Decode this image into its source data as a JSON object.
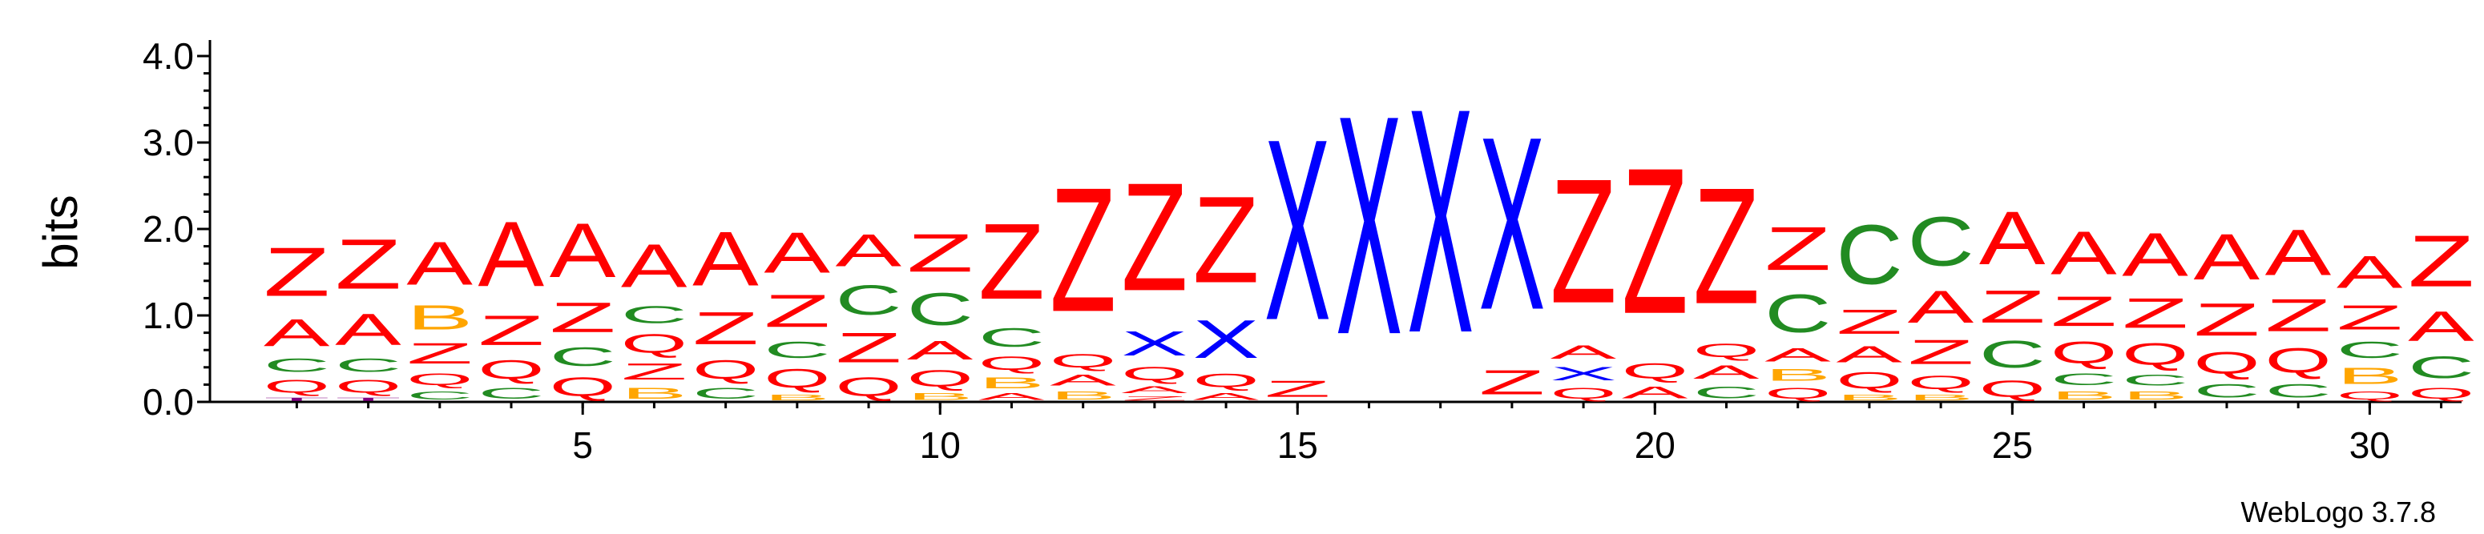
{
  "chart_data": {
    "type": "sequence_logo",
    "ylabel": "bits",
    "ylim": [
      0,
      4.2
    ],
    "yticks": [
      "0.0",
      "1.0",
      "2.0",
      "3.0",
      "4.0"
    ],
    "xtick_values": [
      5,
      10,
      15,
      20,
      25,
      30
    ],
    "xtick_labels": [
      "5",
      "10",
      "15",
      "20",
      "25",
      "30"
    ],
    "credit": "WebLogo 3.7.8",
    "colors": {
      "A": "#ff0000",
      "Z": "#ff0000",
      "Q": "#ff0000",
      "C": "#228b22",
      "B": "#ffa500",
      "X": "#0000ff",
      "T": "#800080"
    },
    "columns": [
      {
        "position": 1,
        "stack": [
          [
            "T",
            0.06
          ],
          [
            "Q",
            0.24
          ],
          [
            "C",
            0.25
          ],
          [
            "A",
            0.5
          ],
          [
            "Z",
            0.9
          ]
        ]
      },
      {
        "position": 2,
        "stack": [
          [
            "T",
            0.06
          ],
          [
            "Q",
            0.24
          ],
          [
            "C",
            0.25
          ],
          [
            "A",
            0.58
          ],
          [
            "Z",
            0.92
          ]
        ]
      },
      {
        "position": 3,
        "stack": [
          [
            "C",
            0.15
          ],
          [
            "Q",
            0.22
          ],
          [
            "Z",
            0.38
          ],
          [
            "B",
            0.45
          ],
          [
            "A",
            0.8
          ]
        ]
      },
      {
        "position": 4,
        "stack": [
          [
            "C",
            0.2
          ],
          [
            "Q",
            0.35
          ],
          [
            "Z",
            0.55
          ],
          [
            "A",
            1.2
          ]
        ]
      },
      {
        "position": 5,
        "stack": [
          [
            "Q",
            0.35
          ],
          [
            "C",
            0.35
          ],
          [
            "Z",
            0.55
          ],
          [
            "A",
            1.0
          ]
        ]
      },
      {
        "position": 6,
        "stack": [
          [
            "B",
            0.2
          ],
          [
            "Z",
            0.3
          ],
          [
            "Q",
            0.35
          ],
          [
            "C",
            0.32
          ],
          [
            "A",
            0.8
          ]
        ]
      },
      {
        "position": 7,
        "stack": [
          [
            "C",
            0.2
          ],
          [
            "Q",
            0.35
          ],
          [
            "Z",
            0.6
          ],
          [
            "A",
            1.0
          ]
        ]
      },
      {
        "position": 8,
        "stack": [
          [
            "B",
            0.1
          ],
          [
            "Q",
            0.35
          ],
          [
            "C",
            0.3
          ],
          [
            "Z",
            0.6
          ],
          [
            "A",
            0.75
          ]
        ]
      },
      {
        "position": 9,
        "stack": [
          [
            "Q",
            0.35
          ],
          [
            "Z",
            0.55
          ],
          [
            "C",
            0.55
          ],
          [
            "A",
            0.6
          ]
        ]
      },
      {
        "position": 10,
        "stack": [
          [
            "B",
            0.12
          ],
          [
            "Q",
            0.3
          ],
          [
            "A",
            0.35
          ],
          [
            "C",
            0.6
          ],
          [
            "Z",
            0.7
          ]
        ]
      },
      {
        "position": 11,
        "stack": [
          [
            "A",
            0.12
          ],
          [
            "B",
            0.2
          ],
          [
            "Q",
            0.25
          ],
          [
            "C",
            0.35
          ],
          [
            "Z",
            1.4
          ]
        ]
      },
      {
        "position": 12,
        "stack": [
          [
            "B",
            0.15
          ],
          [
            "A",
            0.2
          ],
          [
            "Q",
            0.25
          ],
          [
            "Z",
            2.3
          ]
        ]
      },
      {
        "position": 13,
        "stack": [
          [
            "Z",
            0.08
          ],
          [
            "A",
            0.12
          ],
          [
            "Q",
            0.25
          ],
          [
            "X",
            0.45
          ],
          [
            "Z",
            2.0
          ]
        ]
      },
      {
        "position": 14,
        "stack": [
          [
            "A",
            0.12
          ],
          [
            "Q",
            0.25
          ],
          [
            "X",
            0.7
          ],
          [
            "Z",
            1.6
          ]
        ]
      },
      {
        "position": 15,
        "stack": [
          [
            "Z",
            0.3
          ],
          [
            "X",
            3.35
          ]
        ]
      },
      {
        "position": 16,
        "stack": [
          [
            "X",
            4.05
          ]
        ]
      },
      {
        "position": 17,
        "stack": [
          [
            "X",
            4.15
          ]
        ]
      },
      {
        "position": 18,
        "stack": [
          [
            "Z",
            0.45
          ],
          [
            "X",
            3.2
          ]
        ]
      },
      {
        "position": 19,
        "stack": [
          [
            "Q",
            0.2
          ],
          [
            "X",
            0.25
          ],
          [
            "A",
            0.25
          ],
          [
            "Z",
            2.3
          ]
        ]
      },
      {
        "position": 20,
        "stack": [
          [
            "A",
            0.22
          ],
          [
            "Q",
            0.28
          ],
          [
            "Z",
            2.7
          ]
        ]
      },
      {
        "position": 21,
        "stack": [
          [
            "C",
            0.22
          ],
          [
            "A",
            0.25
          ],
          [
            "Q",
            0.25
          ],
          [
            "Z",
            2.15
          ]
        ]
      },
      {
        "position": 22,
        "stack": [
          [
            "Q",
            0.2
          ],
          [
            "B",
            0.22
          ],
          [
            "A",
            0.25
          ],
          [
            "C",
            0.7
          ],
          [
            "Z",
            0.8
          ]
        ]
      },
      {
        "position": 23,
        "stack": [
          [
            "B",
            0.1
          ],
          [
            "Q",
            0.3
          ],
          [
            "A",
            0.3
          ],
          [
            "Z",
            0.45
          ],
          [
            "C",
            1.1
          ]
        ]
      },
      {
        "position": 24,
        "stack": [
          [
            "B",
            0.1
          ],
          [
            "Q",
            0.25
          ],
          [
            "Z",
            0.45
          ],
          [
            "A",
            0.6
          ],
          [
            "C",
            0.9
          ]
        ]
      },
      {
        "position": 25,
        "stack": [
          [
            "Q",
            0.3
          ],
          [
            "C",
            0.5
          ],
          [
            "Z",
            0.6
          ],
          [
            "A",
            0.98
          ]
        ]
      },
      {
        "position": 26,
        "stack": [
          [
            "B",
            0.15
          ],
          [
            "C",
            0.22
          ],
          [
            "Q",
            0.4
          ],
          [
            "Z",
            0.55
          ],
          [
            "A",
            0.8
          ]
        ]
      },
      {
        "position": 27,
        "stack": [
          [
            "B",
            0.15
          ],
          [
            "C",
            0.2
          ],
          [
            "Q",
            0.4
          ],
          [
            "Z",
            0.55
          ],
          [
            "A",
            0.8
          ]
        ]
      },
      {
        "position": 28,
        "stack": [
          [
            "C",
            0.25
          ],
          [
            "Q",
            0.4
          ],
          [
            "Z",
            0.6
          ],
          [
            "A",
            0.85
          ]
        ]
      },
      {
        "position": 29,
        "stack": [
          [
            "C",
            0.25
          ],
          [
            "Q",
            0.45
          ],
          [
            "Z",
            0.6
          ],
          [
            "A",
            0.85
          ]
        ]
      },
      {
        "position": 30,
        "stack": [
          [
            "Q",
            0.15
          ],
          [
            "B",
            0.3
          ],
          [
            "C",
            0.3
          ],
          [
            "Z",
            0.45
          ],
          [
            "A",
            0.6
          ]
        ]
      },
      {
        "position": 31,
        "stack": [
          [
            "Q",
            0.2
          ],
          [
            "C",
            0.4
          ],
          [
            "A",
            0.55
          ],
          [
            "Z",
            0.95
          ]
        ]
      }
    ]
  }
}
